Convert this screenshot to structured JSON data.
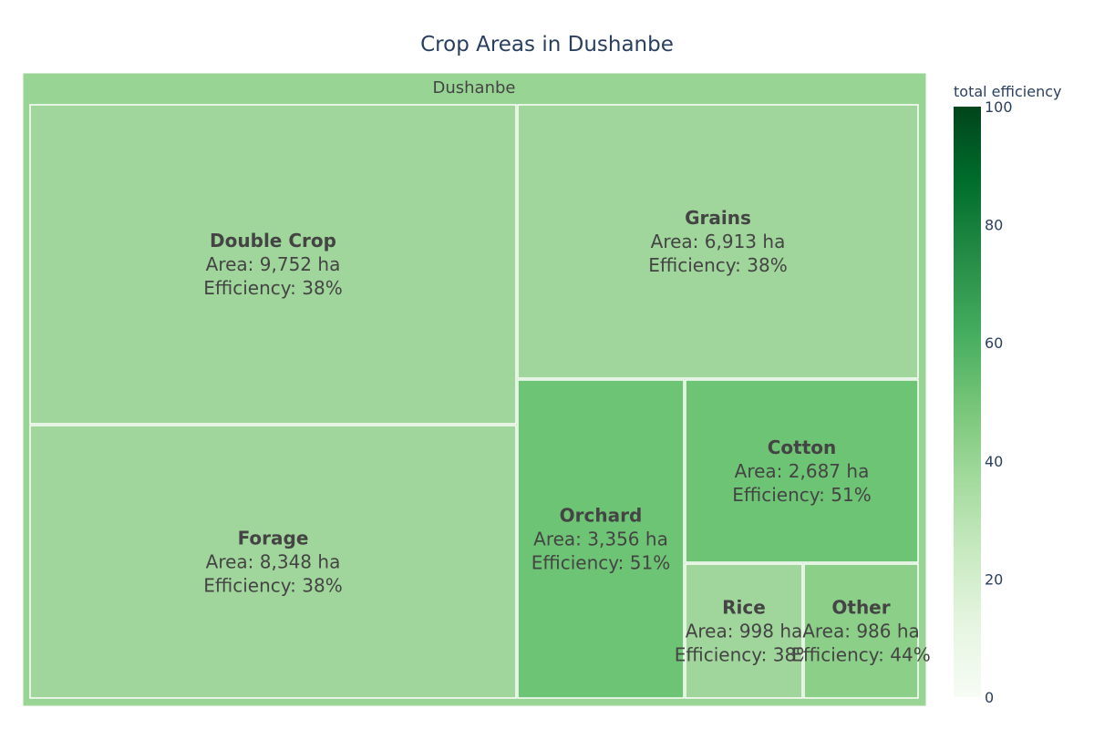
{
  "chart_data": {
    "type": "treemap",
    "title": "Crop Areas in Dushanbe",
    "root": {
      "name": "Dushanbe",
      "color": "#98d594"
    },
    "tiles": [
      {
        "name": "Double Crop",
        "area_text": "Area: 9,752 ha",
        "efficiency_text": "Efficiency: 38%",
        "area": 9752,
        "efficiency": 38,
        "color": "#a0d69b"
      },
      {
        "name": "Forage",
        "area_text": "Area: 8,348 ha",
        "efficiency_text": "Efficiency: 38%",
        "area": 8348,
        "efficiency": 38,
        "color": "#a0d69b"
      },
      {
        "name": "Grains",
        "area_text": "Area: 6,913 ha",
        "efficiency_text": "Efficiency: 38%",
        "area": 6913,
        "efficiency": 38,
        "color": "#a0d69b"
      },
      {
        "name": "Orchard",
        "area_text": "Area: 3,356 ha",
        "efficiency_text": "Efficiency: 51%",
        "area": 3356,
        "efficiency": 51,
        "color": "#6ec475"
      },
      {
        "name": "Cotton",
        "area_text": "Area: 2,687 ha",
        "efficiency_text": "Efficiency: 51%",
        "area": 2687,
        "efficiency": 51,
        "color": "#6ec475"
      },
      {
        "name": "Rice",
        "area_text": "Area: 998 ha",
        "efficiency_text": "Efficiency: 38%",
        "area": 998,
        "efficiency": 38,
        "color": "#a0d69b"
      },
      {
        "name": "Other",
        "area_text": "Area: 986 ha",
        "efficiency_text": "Efficiency: 44%",
        "area": 986,
        "efficiency": 44,
        "color": "#8ccf88"
      }
    ],
    "colorbar": {
      "title": "total efficiency",
      "range": [
        0,
        100
      ],
      "ticks": [
        "0",
        "20",
        "40",
        "60",
        "80",
        "100"
      ],
      "colorscale": [
        "#f7fcf5",
        "#e5f5e0",
        "#c7e9c0",
        "#a1d99b",
        "#74c476",
        "#41ab5d",
        "#238b45",
        "#006d2c",
        "#00441b"
      ]
    }
  }
}
